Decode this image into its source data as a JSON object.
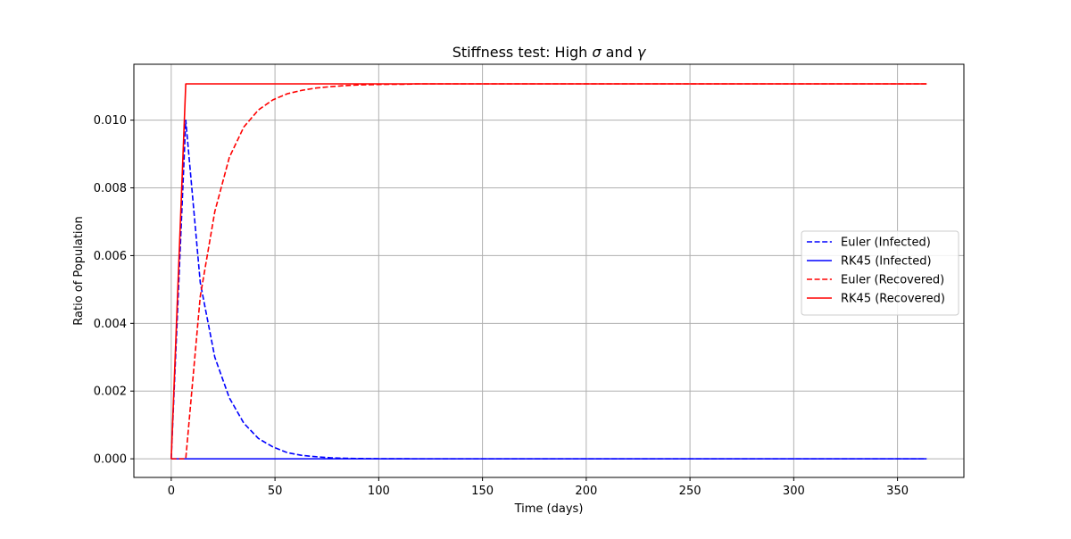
{
  "chart_data": {
    "type": "line",
    "title": "Stiffness test: High σ and γ",
    "xlabel": "Time (days)",
    "ylabel": "Ratio of Population",
    "xlim": [
      -18,
      382
    ],
    "ylim": [
      -0.00055,
      0.01165
    ],
    "x_ticks": [
      0,
      50,
      100,
      150,
      200,
      250,
      300,
      350
    ],
    "x_tick_labels": [
      "0",
      "50",
      "100",
      "150",
      "200",
      "250",
      "300",
      "350"
    ],
    "y_ticks": [
      0.0,
      0.002,
      0.004,
      0.006,
      0.008,
      0.01
    ],
    "y_tick_labels": [
      "0.000",
      "0.002",
      "0.004",
      "0.006",
      "0.008",
      "0.010"
    ],
    "grid": true,
    "legend_position": "center-right",
    "series": [
      {
        "name": "Euler (Infected)",
        "color": "#0000ff",
        "dash": "dashed",
        "x": [
          0,
          7,
          14,
          21,
          28,
          35,
          42,
          49,
          56,
          63,
          70,
          77,
          84,
          91,
          98,
          105,
          112,
          119,
          126,
          133,
          140,
          150,
          175,
          200,
          250,
          300,
          364
        ],
        "y": [
          0.0,
          0.01,
          0.0052,
          0.003,
          0.0018,
          0.00105,
          0.0006,
          0.00035,
          0.00018,
          0.0001,
          6e-05,
          3e-05,
          1.5e-05,
          8e-06,
          4e-06,
          2e-06,
          1e-06,
          0.0,
          0.0,
          0.0,
          0.0,
          0.0,
          0.0,
          0.0,
          0.0,
          0.0,
          0.0
        ]
      },
      {
        "name": "RK45 (Infected)",
        "color": "#0000ff",
        "dash": "solid",
        "x": [
          0,
          7,
          364
        ],
        "y": [
          0.0,
          0.0,
          0.0
        ]
      },
      {
        "name": "Euler (Recovered)",
        "color": "#ff0000",
        "dash": "dashed",
        "x": [
          0,
          7,
          14,
          21,
          28,
          35,
          42,
          49,
          56,
          63,
          70,
          77,
          84,
          91,
          98,
          105,
          112,
          119,
          150,
          200,
          250,
          300,
          364
        ],
        "y": [
          0.0,
          0.0,
          0.0048,
          0.0073,
          0.0089,
          0.0098,
          0.0103,
          0.0106,
          0.01078,
          0.01088,
          0.01095,
          0.01099,
          0.01102,
          0.01104,
          0.01105,
          0.01106,
          0.01106,
          0.01107,
          0.01107,
          0.01107,
          0.01107,
          0.01107,
          0.01107
        ]
      },
      {
        "name": "RK45 (Recovered)",
        "color": "#ff0000",
        "dash": "solid",
        "x": [
          0,
          7,
          364
        ],
        "y": [
          0.0,
          0.01107,
          0.01107
        ]
      }
    ]
  }
}
